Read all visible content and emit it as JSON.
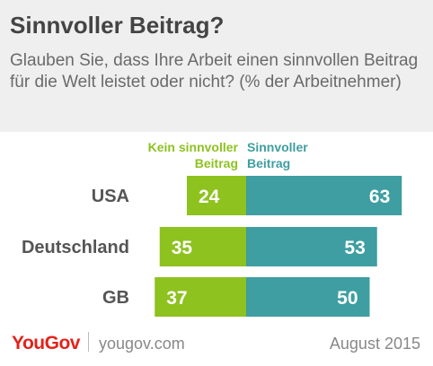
{
  "title": "Sinnvoller Beitrag?",
  "subtitle": "Glauben Sie, dass Ihre Arbeit einen sinnvollen Beitrag für die Welt leistet oder nicht? (% der Arbeitnehmer)",
  "chart_data": {
    "type": "bar",
    "orientation": "horizontal-diverging",
    "categories": [
      "USA",
      "Deutschland",
      "GB"
    ],
    "series": [
      {
        "name": "Kein sinnvoller Beitrag",
        "values": [
          24,
          35,
          37
        ],
        "color": "#8dc21f",
        "direction": "left"
      },
      {
        "name": "Sinnvoller Beitrag",
        "values": [
          63,
          53,
          50
        ],
        "color": "#3e9ea1",
        "direction": "right"
      }
    ],
    "legend": {
      "left_line1": "Kein sinnvoller",
      "left_line2": "Beitrag",
      "right_line1": "Sinnvoller",
      "right_line2": "Beitrag"
    },
    "legend_placement": "top-center",
    "grid": false
  },
  "footer": {
    "logo": "YouGov",
    "url": "yougov.com",
    "date": "August 2015",
    "logo_color": "#e2231a"
  }
}
